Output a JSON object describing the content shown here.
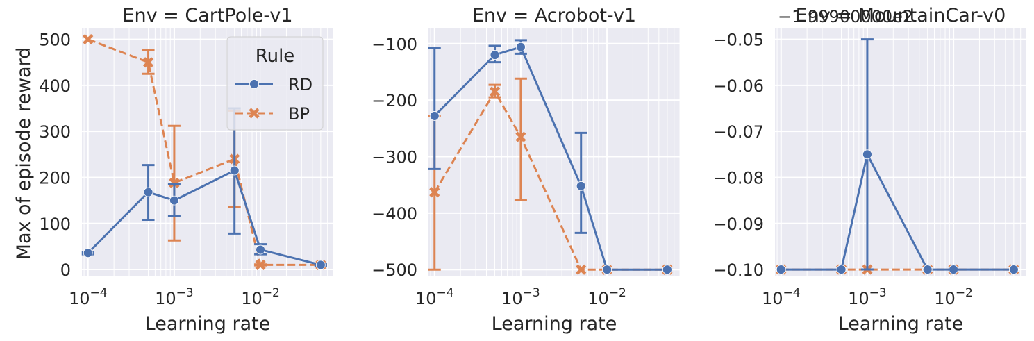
{
  "figure": {
    "ylabel": "Max of episode reward",
    "legend": {
      "title": "Rule",
      "entries": [
        {
          "name": "RD",
          "color": "#4c72b0",
          "marker": "circle",
          "dash": "solid"
        },
        {
          "name": "BP",
          "color": "#dd8452",
          "marker": "x",
          "dash": "dashed"
        }
      ],
      "placement": "upper-right of first panel"
    }
  },
  "chart_data": [
    {
      "type": "line",
      "title": "Env = CartPole-v1",
      "xlabel": "Learning rate",
      "ylabel": "Max of episode reward",
      "xscale": "log",
      "xlim": [
        8.5e-05,
        0.07
      ],
      "ylim": [
        -15,
        525
      ],
      "yticks": [
        0,
        100,
        200,
        300,
        400,
        500
      ],
      "ytick_labels": [
        "0",
        "100",
        "200",
        "300",
        "400",
        "500"
      ],
      "xticks": [
        0.0001,
        0.001,
        0.01
      ],
      "xtick_labels": [
        "10−4",
        "10−3",
        "10−2"
      ],
      "grid": true,
      "series": [
        {
          "name": "RD",
          "x": [
            0.0001,
            0.0005,
            0.001,
            0.005,
            0.01,
            0.05
          ],
          "y": [
            36,
            168,
            150,
            215,
            43,
            10
          ],
          "err_low": [
            33,
            108,
            116,
            78,
            33,
            8
          ],
          "err_high": [
            38,
            227,
            185,
            350,
            55,
            12
          ]
        },
        {
          "name": "BP",
          "x": [
            0.0001,
            0.0005,
            0.001,
            0.005,
            0.01,
            0.05
          ],
          "y": [
            500,
            450,
            188,
            240,
            10,
            10
          ],
          "err_low": [
            500,
            425,
            63,
            135,
            9,
            9
          ],
          "err_high": [
            500,
            477,
            312,
            345,
            11,
            11
          ]
        }
      ]
    },
    {
      "type": "line",
      "title": "Env = Acrobot-v1",
      "xlabel": "Learning rate",
      "ylabel": "",
      "xscale": "log",
      "xlim": [
        8.5e-05,
        0.07
      ],
      "ylim": [
        -512,
        -72
      ],
      "yticks": [
        -500,
        -400,
        -300,
        -200,
        -100
      ],
      "ytick_labels": [
        "−500",
        "−400",
        "−300",
        "−200",
        "−100"
      ],
      "xticks": [
        0.0001,
        0.001,
        0.01
      ],
      "xtick_labels": [
        "10−4",
        "10−3",
        "10−2"
      ],
      "grid": true,
      "series": [
        {
          "name": "RD",
          "x": [
            0.0001,
            0.0005,
            0.001,
            0.005,
            0.01,
            0.05
          ],
          "y": [
            -228,
            -120,
            -106,
            -352,
            -500,
            -500
          ],
          "err_low": [
            -322,
            -133,
            -118,
            -435,
            -500,
            -500
          ],
          "err_high": [
            -108,
            -104,
            -94,
            -258,
            -500,
            -500
          ]
        },
        {
          "name": "BP",
          "x": [
            0.0001,
            0.0005,
            0.001,
            0.005,
            0.01,
            0.05
          ],
          "y": [
            -363,
            -185,
            -265,
            -500,
            -500,
            -500
          ],
          "err_low": [
            -500,
            -195,
            -377,
            -500,
            -500,
            -500
          ],
          "err_high": [
            -228,
            -173,
            -162,
            -500,
            -500,
            -500
          ]
        }
      ]
    },
    {
      "type": "line",
      "title": "Env = MountainCar-v0",
      "xlabel": "Learning rate",
      "ylabel": "",
      "xscale": "log",
      "xlim": [
        8.5e-05,
        0.07
      ],
      "ylim": [
        -0.1015,
        -0.0475
      ],
      "yticks": [
        -0.1,
        -0.09,
        -0.08,
        -0.07,
        -0.06,
        -0.05
      ],
      "ytick_labels": [
        "−0.10",
        "−0.09",
        "−0.08",
        "−0.07",
        "−0.06",
        "−0.05"
      ],
      "offset_text": "−1.99900000e2",
      "xticks": [
        0.0001,
        0.001,
        0.01
      ],
      "xtick_labels": [
        "10−4",
        "10−3",
        "10−2"
      ],
      "grid": true,
      "series": [
        {
          "name": "RD",
          "x": [
            0.0001,
            0.0005,
            0.001,
            0.005,
            0.01,
            0.05
          ],
          "y": [
            -0.1,
            -0.1,
            -0.075,
            -0.1,
            -0.1,
            -0.1
          ],
          "err_low": [
            -0.1,
            -0.1,
            -0.1,
            -0.1,
            -0.1,
            -0.1
          ],
          "err_high": [
            -0.1,
            -0.1,
            -0.05,
            -0.1,
            -0.1,
            -0.1
          ]
        },
        {
          "name": "BP",
          "x": [
            0.0001,
            0.0005,
            0.001,
            0.005,
            0.01,
            0.05
          ],
          "y": [
            -0.1,
            -0.1,
            -0.1,
            -0.1,
            -0.1,
            -0.1
          ],
          "err_low": [
            -0.1,
            -0.1,
            -0.1,
            -0.1,
            -0.1,
            -0.1
          ],
          "err_high": [
            -0.1,
            -0.1,
            -0.1,
            -0.1,
            -0.1,
            -0.1
          ]
        }
      ]
    }
  ]
}
